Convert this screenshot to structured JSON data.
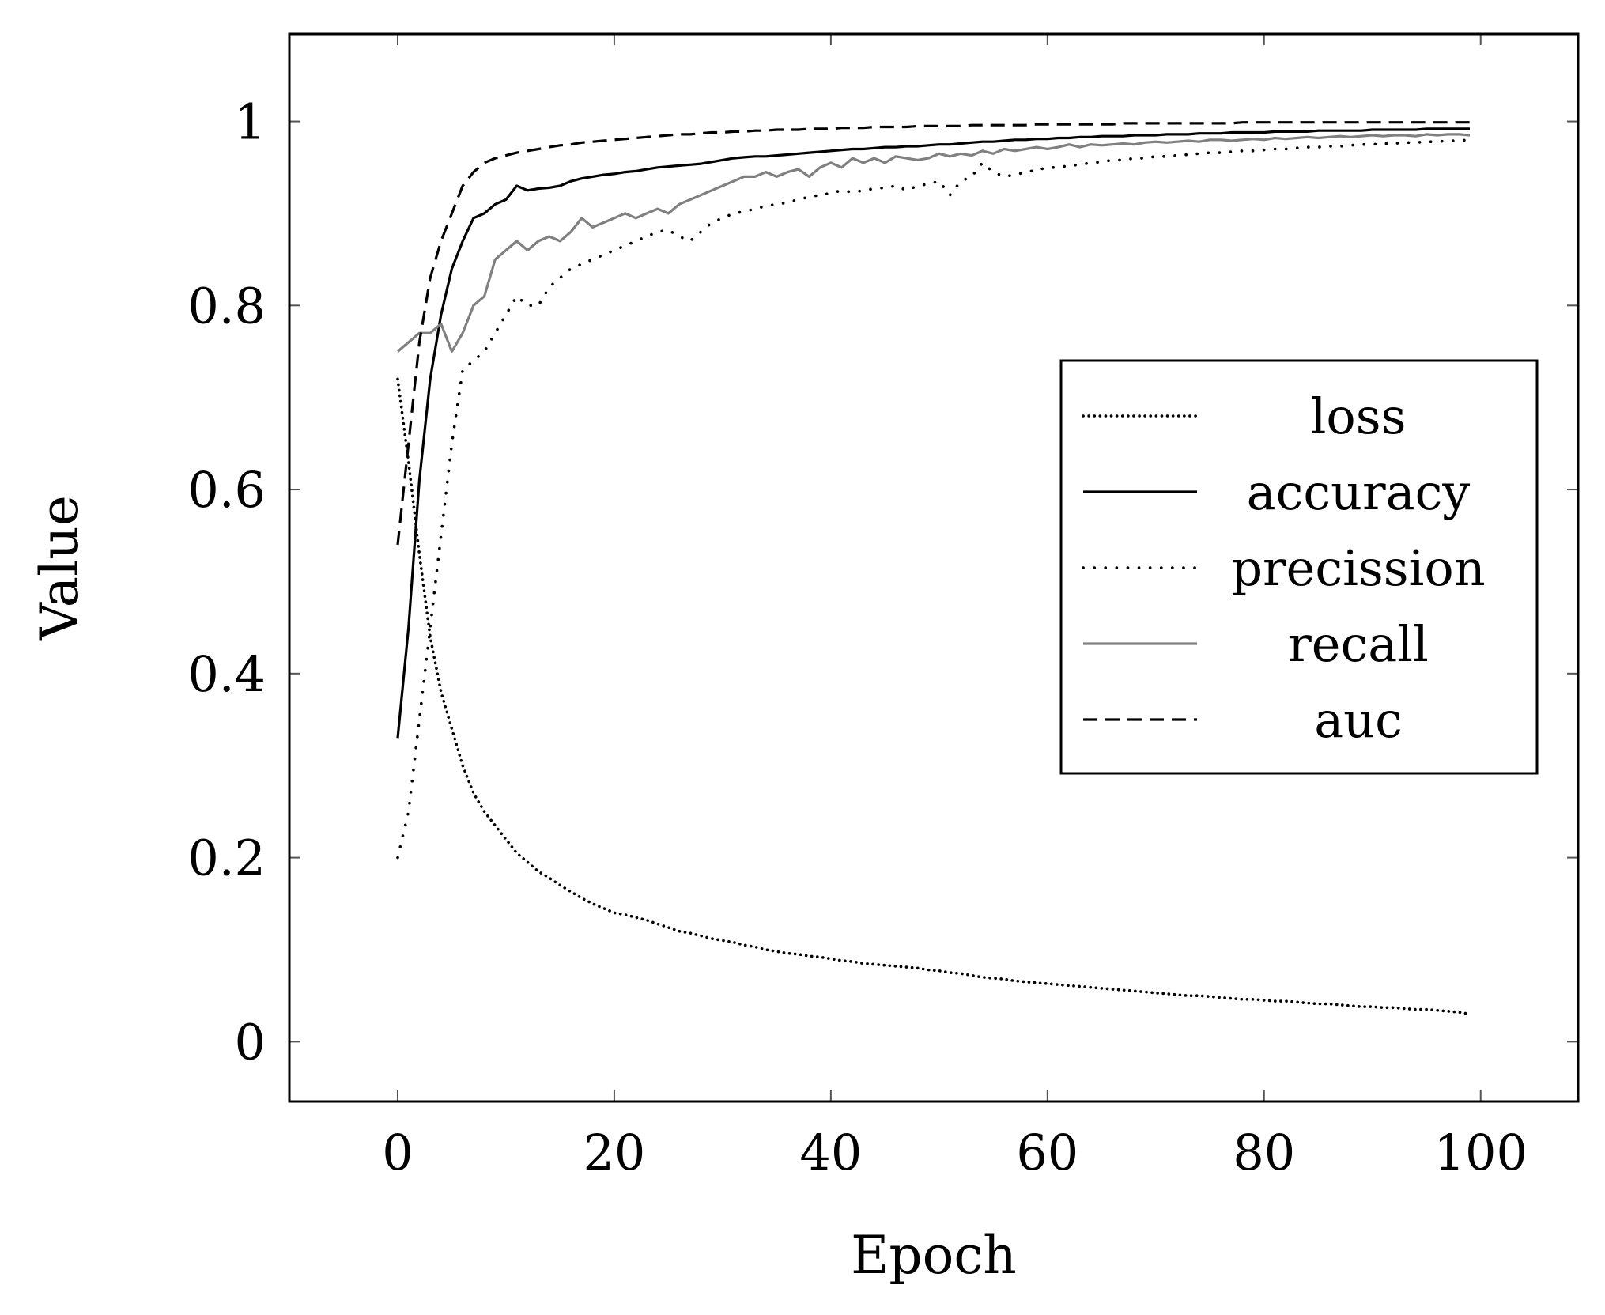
{
  "chart_data": {
    "type": "line",
    "title": "",
    "xlabel": "Epoch",
    "ylabel": "Value",
    "xlim": [
      -10,
      109
    ],
    "ylim": [
      -0.065,
      1.095
    ],
    "xticks": [
      0,
      20,
      40,
      60,
      80,
      100
    ],
    "yticks": [
      0,
      0.2,
      0.4,
      0.6,
      0.8,
      1
    ],
    "xtick_labels": [
      "0",
      "20",
      "40",
      "60",
      "80",
      "100"
    ],
    "ytick_labels": [
      "0",
      "0.2",
      "0.4",
      "0.6",
      "0.8",
      "1"
    ],
    "grid": false,
    "legend_position": "right-center",
    "x": [
      0,
      1,
      2,
      3,
      4,
      5,
      6,
      7,
      8,
      9,
      10,
      11,
      12,
      13,
      14,
      15,
      16,
      17,
      18,
      19,
      20,
      21,
      22,
      23,
      24,
      25,
      26,
      27,
      28,
      29,
      30,
      31,
      32,
      33,
      34,
      35,
      36,
      37,
      38,
      39,
      40,
      41,
      42,
      43,
      44,
      45,
      46,
      47,
      48,
      49,
      50,
      51,
      52,
      53,
      54,
      55,
      56,
      57,
      58,
      59,
      60,
      61,
      62,
      63,
      64,
      65,
      66,
      67,
      68,
      69,
      70,
      71,
      72,
      73,
      74,
      75,
      76,
      77,
      78,
      79,
      80,
      81,
      82,
      83,
      84,
      85,
      86,
      87,
      88,
      89,
      90,
      91,
      92,
      93,
      94,
      95,
      96,
      97,
      98,
      99
    ],
    "series": [
      {
        "name": "loss",
        "color": "#000000",
        "style": "densely-dotted",
        "values": [
          0.72,
          0.63,
          0.53,
          0.44,
          0.38,
          0.34,
          0.3,
          0.27,
          0.25,
          0.235,
          0.22,
          0.205,
          0.195,
          0.185,
          0.178,
          0.17,
          0.163,
          0.156,
          0.15,
          0.145,
          0.14,
          0.138,
          0.135,
          0.132,
          0.128,
          0.124,
          0.12,
          0.118,
          0.115,
          0.112,
          0.11,
          0.108,
          0.105,
          0.103,
          0.1,
          0.098,
          0.096,
          0.095,
          0.093,
          0.092,
          0.09,
          0.088,
          0.087,
          0.085,
          0.084,
          0.083,
          0.082,
          0.081,
          0.08,
          0.078,
          0.077,
          0.075,
          0.074,
          0.072,
          0.07,
          0.069,
          0.068,
          0.066,
          0.065,
          0.064,
          0.063,
          0.062,
          0.061,
          0.06,
          0.059,
          0.058,
          0.057,
          0.056,
          0.055,
          0.054,
          0.053,
          0.052,
          0.051,
          0.05,
          0.05,
          0.049,
          0.048,
          0.047,
          0.046,
          0.046,
          0.045,
          0.044,
          0.044,
          0.043,
          0.042,
          0.041,
          0.041,
          0.04,
          0.039,
          0.038,
          0.038,
          0.037,
          0.037,
          0.036,
          0.035,
          0.035,
          0.034,
          0.033,
          0.032,
          0.03
        ]
      },
      {
        "name": "accuracy",
        "color": "#000000",
        "style": "solid",
        "values": [
          0.33,
          0.45,
          0.61,
          0.72,
          0.79,
          0.84,
          0.87,
          0.895,
          0.9,
          0.91,
          0.915,
          0.93,
          0.925,
          0.927,
          0.928,
          0.93,
          0.935,
          0.938,
          0.94,
          0.942,
          0.943,
          0.945,
          0.946,
          0.948,
          0.95,
          0.951,
          0.952,
          0.953,
          0.954,
          0.956,
          0.958,
          0.96,
          0.961,
          0.962,
          0.962,
          0.963,
          0.964,
          0.965,
          0.966,
          0.967,
          0.968,
          0.969,
          0.97,
          0.97,
          0.971,
          0.972,
          0.972,
          0.973,
          0.973,
          0.974,
          0.975,
          0.975,
          0.976,
          0.977,
          0.978,
          0.978,
          0.979,
          0.98,
          0.98,
          0.981,
          0.981,
          0.982,
          0.982,
          0.983,
          0.983,
          0.984,
          0.984,
          0.984,
          0.985,
          0.985,
          0.985,
          0.986,
          0.986,
          0.986,
          0.987,
          0.987,
          0.987,
          0.988,
          0.988,
          0.988,
          0.988,
          0.989,
          0.989,
          0.989,
          0.989,
          0.99,
          0.99,
          0.99,
          0.99,
          0.99,
          0.991,
          0.991,
          0.991,
          0.991,
          0.991,
          0.992,
          0.992,
          0.992,
          0.992,
          0.992
        ]
      },
      {
        "name": "precission",
        "color": "#000000",
        "style": "loosely-dotted",
        "values": [
          0.2,
          0.25,
          0.35,
          0.45,
          0.55,
          0.65,
          0.73,
          0.74,
          0.75,
          0.77,
          0.79,
          0.81,
          0.8,
          0.8,
          0.82,
          0.83,
          0.84,
          0.845,
          0.85,
          0.855,
          0.86,
          0.865,
          0.87,
          0.875,
          0.88,
          0.882,
          0.875,
          0.87,
          0.88,
          0.89,
          0.895,
          0.9,
          0.902,
          0.905,
          0.908,
          0.91,
          0.912,
          0.915,
          0.918,
          0.92,
          0.922,
          0.925,
          0.923,
          0.925,
          0.927,
          0.928,
          0.93,
          0.925,
          0.93,
          0.932,
          0.935,
          0.92,
          0.935,
          0.94,
          0.955,
          0.945,
          0.94,
          0.942,
          0.945,
          0.947,
          0.95,
          0.95,
          0.952,
          0.953,
          0.955,
          0.956,
          0.958,
          0.958,
          0.96,
          0.96,
          0.962,
          0.962,
          0.963,
          0.964,
          0.965,
          0.966,
          0.966,
          0.967,
          0.968,
          0.968,
          0.969,
          0.97,
          0.97,
          0.971,
          0.972,
          0.972,
          0.973,
          0.973,
          0.974,
          0.975,
          0.975,
          0.976,
          0.976,
          0.977,
          0.977,
          0.978,
          0.978,
          0.979,
          0.979,
          0.98
        ]
      },
      {
        "name": "recall",
        "color": "#808080",
        "style": "solid",
        "values": [
          0.75,
          0.76,
          0.77,
          0.77,
          0.78,
          0.75,
          0.77,
          0.8,
          0.81,
          0.85,
          0.86,
          0.87,
          0.86,
          0.87,
          0.875,
          0.87,
          0.88,
          0.895,
          0.885,
          0.89,
          0.895,
          0.9,
          0.895,
          0.9,
          0.905,
          0.9,
          0.91,
          0.915,
          0.92,
          0.925,
          0.93,
          0.935,
          0.94,
          0.94,
          0.945,
          0.94,
          0.945,
          0.948,
          0.94,
          0.95,
          0.955,
          0.95,
          0.96,
          0.955,
          0.96,
          0.955,
          0.962,
          0.96,
          0.958,
          0.96,
          0.965,
          0.962,
          0.965,
          0.963,
          0.968,
          0.965,
          0.97,
          0.968,
          0.97,
          0.972,
          0.97,
          0.972,
          0.975,
          0.972,
          0.975,
          0.974,
          0.975,
          0.976,
          0.975,
          0.977,
          0.978,
          0.977,
          0.978,
          0.979,
          0.978,
          0.98,
          0.98,
          0.979,
          0.98,
          0.981,
          0.98,
          0.982,
          0.981,
          0.982,
          0.983,
          0.982,
          0.983,
          0.984,
          0.983,
          0.984,
          0.985,
          0.984,
          0.985,
          0.985,
          0.984,
          0.986,
          0.985,
          0.986,
          0.986,
          0.985
        ]
      },
      {
        "name": "auc",
        "color": "#000000",
        "style": "dashed",
        "values": [
          0.54,
          0.65,
          0.76,
          0.83,
          0.87,
          0.9,
          0.93,
          0.945,
          0.955,
          0.96,
          0.963,
          0.966,
          0.968,
          0.97,
          0.972,
          0.974,
          0.975,
          0.977,
          0.978,
          0.979,
          0.98,
          0.981,
          0.982,
          0.983,
          0.984,
          0.985,
          0.986,
          0.986,
          0.987,
          0.988,
          0.988,
          0.989,
          0.989,
          0.99,
          0.99,
          0.991,
          0.991,
          0.991,
          0.992,
          0.992,
          0.992,
          0.993,
          0.993,
          0.993,
          0.994,
          0.994,
          0.994,
          0.994,
          0.995,
          0.995,
          0.995,
          0.995,
          0.995,
          0.996,
          0.996,
          0.996,
          0.996,
          0.996,
          0.996,
          0.997,
          0.997,
          0.997,
          0.997,
          0.997,
          0.997,
          0.997,
          0.997,
          0.998,
          0.998,
          0.998,
          0.998,
          0.998,
          0.998,
          0.998,
          0.998,
          0.998,
          0.998,
          0.998,
          0.999,
          0.999,
          0.999,
          0.999,
          0.999,
          0.999,
          0.999,
          0.999,
          0.999,
          0.999,
          0.999,
          0.999,
          0.999,
          0.999,
          0.999,
          0.999,
          0.999,
          0.999,
          0.999,
          0.999,
          0.999,
          0.999
        ]
      }
    ]
  }
}
